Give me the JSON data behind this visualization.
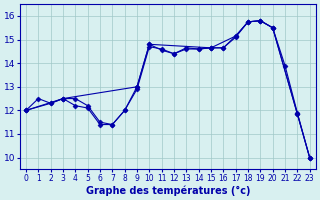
{
  "xlabel": "Graphe des températures (°c)",
  "bg_color": "#d8f0f0",
  "line_color": "#0000aa",
  "grid_color": "#a0c8c8",
  "ylim": [
    9.5,
    16.5
  ],
  "xlim": [
    -0.5,
    23.5
  ],
  "yticks": [
    10,
    11,
    12,
    13,
    14,
    15,
    16
  ],
  "xticks": [
    0,
    1,
    2,
    3,
    4,
    5,
    6,
    7,
    8,
    9,
    10,
    11,
    12,
    13,
    14,
    15,
    16,
    17,
    18,
    19,
    20,
    21,
    22,
    23
  ],
  "line1_x": [
    0,
    1,
    2,
    3,
    4,
    5,
    6,
    7,
    8,
    9,
    10,
    11,
    12,
    13,
    14,
    15,
    16,
    17,
    18,
    19,
    20,
    21,
    22,
    23
  ],
  "line1_y": [
    12.0,
    12.5,
    12.3,
    12.5,
    12.2,
    12.1,
    11.4,
    11.4,
    12.0,
    12.9,
    14.7,
    14.6,
    14.4,
    14.6,
    14.6,
    14.65,
    14.65,
    15.1,
    15.75,
    15.8,
    15.5,
    13.9,
    11.9,
    10.0
  ],
  "line2_x": [
    0,
    2,
    3,
    4,
    5,
    6,
    7,
    8,
    9,
    10,
    11,
    12,
    13,
    14,
    15,
    16,
    17,
    18,
    19,
    20,
    22,
    23
  ],
  "line2_y": [
    12.0,
    12.3,
    12.5,
    12.5,
    12.2,
    11.5,
    11.4,
    12.0,
    13.0,
    14.8,
    14.55,
    14.4,
    14.65,
    14.6,
    14.65,
    14.65,
    15.15,
    15.75,
    15.8,
    15.5,
    11.85,
    10.0
  ],
  "line3_x": [
    0,
    3,
    9,
    10,
    15,
    17,
    18,
    19,
    20,
    22,
    23
  ],
  "line3_y": [
    12.0,
    12.5,
    13.0,
    14.8,
    14.65,
    15.15,
    15.75,
    15.8,
    15.5,
    11.85,
    10.0
  ]
}
